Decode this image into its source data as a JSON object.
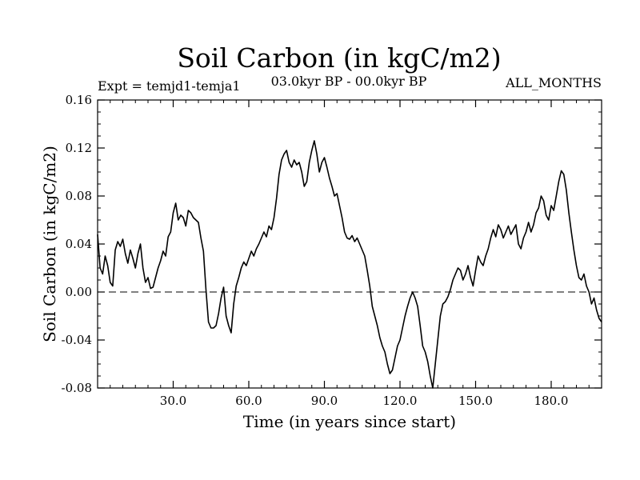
{
  "chart_data": {
    "type": "line",
    "title": "Soil Carbon (in kgC/m2)",
    "subtitle_left": "Expt = temjd1-temja1",
    "subtitle_center": "03.0kyr BP - 00.0kyr BP",
    "subtitle_right": "ALL_MONTHS",
    "xlabel": "Time (in years since start)",
    "ylabel": "Soil Carbon (in kgC/m2)",
    "xlim": [
      0,
      200
    ],
    "ylim": [
      -0.08,
      0.16
    ],
    "xticks": [
      {
        "value": 30,
        "label": "30.0"
      },
      {
        "value": 60,
        "label": "60.0"
      },
      {
        "value": 90,
        "label": "90.0"
      },
      {
        "value": 120,
        "label": "120.0"
      },
      {
        "value": 150,
        "label": "150.0"
      },
      {
        "value": 180,
        "label": "180.0"
      }
    ],
    "yticks": [
      {
        "value": 0.16,
        "label": "0.16"
      },
      {
        "value": 0.12,
        "label": "0.12"
      },
      {
        "value": 0.08,
        "label": "0.08"
      },
      {
        "value": 0.04,
        "label": "0.04"
      },
      {
        "value": 0.0,
        "label": "0.00"
      },
      {
        "value": -0.04,
        "label": "-0.04"
      },
      {
        "value": -0.08,
        "label": "-0.08"
      }
    ],
    "reference_line": {
      "y": 0.0,
      "style": "dashed"
    },
    "series": [
      {
        "name": "Soil Carbon",
        "x": [
          0,
          1,
          2,
          3,
          4,
          5,
          6,
          7,
          8,
          9,
          10,
          11,
          12,
          13,
          14,
          15,
          16,
          17,
          18,
          19,
          20,
          21,
          22,
          23,
          24,
          25,
          26,
          27,
          28,
          29,
          30,
          31,
          32,
          33,
          34,
          35,
          36,
          37,
          38,
          39,
          40,
          41,
          42,
          43,
          44,
          45,
          46,
          47,
          48,
          49,
          50,
          51,
          52,
          53,
          54,
          55,
          56,
          57,
          58,
          59,
          60,
          61,
          62,
          63,
          64,
          65,
          66,
          67,
          68,
          69,
          70,
          71,
          72,
          73,
          74,
          75,
          76,
          77,
          78,
          79,
          80,
          81,
          82,
          83,
          84,
          85,
          86,
          87,
          88,
          89,
          90,
          91,
          92,
          93,
          94,
          95,
          96,
          97,
          98,
          99,
          100,
          101,
          102,
          103,
          104,
          105,
          106,
          107,
          108,
          109,
          110,
          111,
          112,
          113,
          114,
          115,
          116,
          117,
          118,
          119,
          120,
          121,
          122,
          123,
          124,
          125,
          126,
          127,
          128,
          129,
          130,
          131,
          132,
          133,
          134,
          135,
          136,
          137,
          138,
          139,
          140,
          141,
          142,
          143,
          144,
          145,
          146,
          147,
          148,
          149,
          150,
          151,
          152,
          153,
          154,
          155,
          156,
          157,
          158,
          159,
          160,
          161,
          162,
          163,
          164,
          165,
          166,
          167,
          168,
          169,
          170,
          171,
          172,
          173,
          174,
          175,
          176,
          177,
          178,
          179,
          180,
          181,
          182,
          183,
          184,
          185,
          186,
          187,
          188,
          189,
          190,
          191,
          192,
          193,
          194,
          195,
          196,
          197,
          198,
          199,
          200
        ],
        "values": [
          0.048,
          0.02,
          0.015,
          0.03,
          0.022,
          0.008,
          0.005,
          0.035,
          0.042,
          0.038,
          0.044,
          0.032,
          0.024,
          0.035,
          0.028,
          0.02,
          0.032,
          0.04,
          0.02,
          0.008,
          0.012,
          0.003,
          0.004,
          0.012,
          0.02,
          0.026,
          0.034,
          0.03,
          0.046,
          0.05,
          0.066,
          0.074,
          0.06,
          0.064,
          0.062,
          0.055,
          0.068,
          0.066,
          0.062,
          0.06,
          0.058,
          0.045,
          0.034,
          0.002,
          -0.025,
          -0.03,
          -0.03,
          -0.028,
          -0.018,
          -0.005,
          0.004,
          -0.02,
          -0.028,
          -0.034,
          -0.01,
          0.005,
          0.012,
          0.02,
          0.025,
          0.022,
          0.028,
          0.034,
          0.03,
          0.036,
          0.04,
          0.045,
          0.05,
          0.046,
          0.055,
          0.052,
          0.062,
          0.078,
          0.098,
          0.11,
          0.115,
          0.118,
          0.108,
          0.104,
          0.11,
          0.106,
          0.108,
          0.1,
          0.088,
          0.092,
          0.108,
          0.118,
          0.126,
          0.115,
          0.1,
          0.108,
          0.112,
          0.104,
          0.095,
          0.088,
          0.08,
          0.082,
          0.072,
          0.062,
          0.05,
          0.045,
          0.044,
          0.047,
          0.042,
          0.045,
          0.04,
          0.035,
          0.03,
          0.018,
          0.005,
          -0.012,
          -0.02,
          -0.028,
          -0.038,
          -0.045,
          -0.05,
          -0.06,
          -0.068,
          -0.065,
          -0.055,
          -0.045,
          -0.04,
          -0.03,
          -0.02,
          -0.012,
          -0.005,
          0.0,
          -0.005,
          -0.012,
          -0.028,
          -0.045,
          -0.05,
          -0.058,
          -0.07,
          -0.08,
          -0.06,
          -0.04,
          -0.02,
          -0.01,
          -0.008,
          -0.004,
          0.002,
          0.01,
          0.015,
          0.02,
          0.018,
          0.01,
          0.015,
          0.022,
          0.012,
          0.005,
          0.018,
          0.03,
          0.025,
          0.022,
          0.03,
          0.036,
          0.045,
          0.052,
          0.046,
          0.056,
          0.052,
          0.045,
          0.05,
          0.055,
          0.048,
          0.052,
          0.056,
          0.04,
          0.036,
          0.045,
          0.05,
          0.058,
          0.05,
          0.056,
          0.066,
          0.07,
          0.08,
          0.076,
          0.064,
          0.06,
          0.072,
          0.068,
          0.08,
          0.092,
          0.101,
          0.098,
          0.085,
          0.066,
          0.05,
          0.035,
          0.022,
          0.012,
          0.01,
          0.015,
          0.005,
          0.0,
          -0.01,
          -0.005,
          -0.015,
          -0.022,
          -0.025
        ]
      }
    ]
  }
}
